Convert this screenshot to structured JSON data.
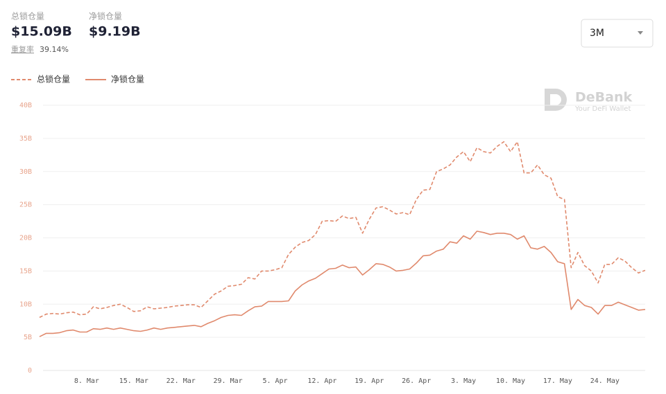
{
  "header": {
    "total_label": "总锁仓量",
    "total_value": "$15.09B",
    "net_label": "净锁仓量",
    "net_value": "$9.19B",
    "reuse_label": "重复率",
    "reuse_value": "39.14%"
  },
  "range_select": "3M",
  "watermark": {
    "name": "DeBank",
    "tagline": "Your DeFi Wallet"
  },
  "chart_data": {
    "type": "line",
    "categories": [
      null,
      null,
      null,
      null,
      null,
      null,
      null,
      "8. Mar",
      null,
      null,
      null,
      null,
      null,
      null,
      "15. Mar",
      null,
      null,
      null,
      null,
      null,
      null,
      "22. Mar",
      null,
      null,
      null,
      null,
      null,
      null,
      "29. Mar",
      null,
      null,
      null,
      null,
      null,
      null,
      "5. Apr",
      null,
      null,
      null,
      null,
      null,
      null,
      "12. Apr",
      null,
      null,
      null,
      null,
      null,
      null,
      "19. Apr",
      null,
      null,
      null,
      null,
      null,
      null,
      "26. Apr",
      null,
      null,
      null,
      null,
      null,
      null,
      "3. May",
      null,
      null,
      null,
      null,
      null,
      null,
      "10. May",
      null,
      null,
      null,
      null,
      null,
      null,
      "17. May",
      null,
      null,
      null,
      null,
      null,
      null,
      "24. May",
      null,
      null,
      null,
      null,
      null,
      null
    ],
    "series": [
      {
        "name": "总锁仓量",
        "color": "#e0896c",
        "style": "dashed",
        "values": [
          8.0,
          8.5,
          8.6,
          8.5,
          8.7,
          8.8,
          8.4,
          8.5,
          9.6,
          9.3,
          9.5,
          9.8,
          10.0,
          9.5,
          8.9,
          9.0,
          9.6,
          9.3,
          9.4,
          9.5,
          9.7,
          9.8,
          9.9,
          9.9,
          9.5,
          10.5,
          11.5,
          12.0,
          12.7,
          12.8,
          13.0,
          14.0,
          13.8,
          15.0,
          15.0,
          15.2,
          15.5,
          17.5,
          18.6,
          19.3,
          19.6,
          20.5,
          22.5,
          22.6,
          22.5,
          23.3,
          22.9,
          23.1,
          20.7,
          22.8,
          24.5,
          24.7,
          24.2,
          23.6,
          23.8,
          23.5,
          25.8,
          27.2,
          27.3,
          30.0,
          30.4,
          31.0,
          32.2,
          33.0,
          31.5,
          33.6,
          33.0,
          32.8,
          33.8,
          34.5,
          33.0,
          34.5,
          29.8,
          29.8,
          31.0,
          29.5,
          29.0,
          26.2,
          25.8,
          15.5,
          17.8,
          15.8,
          15.0,
          13.2,
          16.0,
          16.0,
          17.0,
          16.5,
          15.5,
          14.7,
          15.1
        ]
      },
      {
        "name": "净锁仓量",
        "color": "#e0896c",
        "style": "solid",
        "values": [
          5.1,
          5.6,
          5.6,
          5.7,
          6.0,
          6.1,
          5.8,
          5.8,
          6.3,
          6.2,
          6.4,
          6.2,
          6.4,
          6.2,
          6.0,
          5.9,
          6.1,
          6.4,
          6.2,
          6.4,
          6.5,
          6.6,
          6.7,
          6.8,
          6.6,
          7.1,
          7.5,
          8.0,
          8.3,
          8.4,
          8.3,
          9.0,
          9.6,
          9.7,
          10.4,
          10.4,
          10.4,
          10.5,
          12.0,
          12.9,
          13.5,
          13.9,
          14.6,
          15.3,
          15.4,
          15.9,
          15.5,
          15.6,
          14.4,
          15.2,
          16.1,
          16.0,
          15.6,
          15.0,
          15.1,
          15.3,
          16.2,
          17.3,
          17.4,
          18.0,
          18.3,
          19.4,
          19.2,
          20.3,
          19.8,
          21.0,
          20.8,
          20.5,
          20.7,
          20.7,
          20.5,
          19.8,
          20.3,
          18.5,
          18.3,
          18.7,
          17.8,
          16.4,
          16.1,
          9.2,
          10.7,
          9.8,
          9.5,
          8.5,
          9.8,
          9.8,
          10.3,
          9.9,
          9.5,
          9.1,
          9.2
        ]
      }
    ],
    "ylim": [
      0,
      40
    ],
    "yticks": [
      0,
      {
        "value": 5,
        "label": "5B"
      },
      {
        "value": 10,
        "label": "10B"
      },
      {
        "value": 15,
        "label": "15B"
      },
      {
        "value": 20,
        "label": "20B"
      },
      {
        "value": 25,
        "label": "25B"
      },
      {
        "value": 30,
        "label": "30B"
      },
      {
        "value": 35,
        "label": "35B"
      },
      {
        "value": 40,
        "label": "40B"
      }
    ],
    "grid": true,
    "legend": "top-left"
  }
}
